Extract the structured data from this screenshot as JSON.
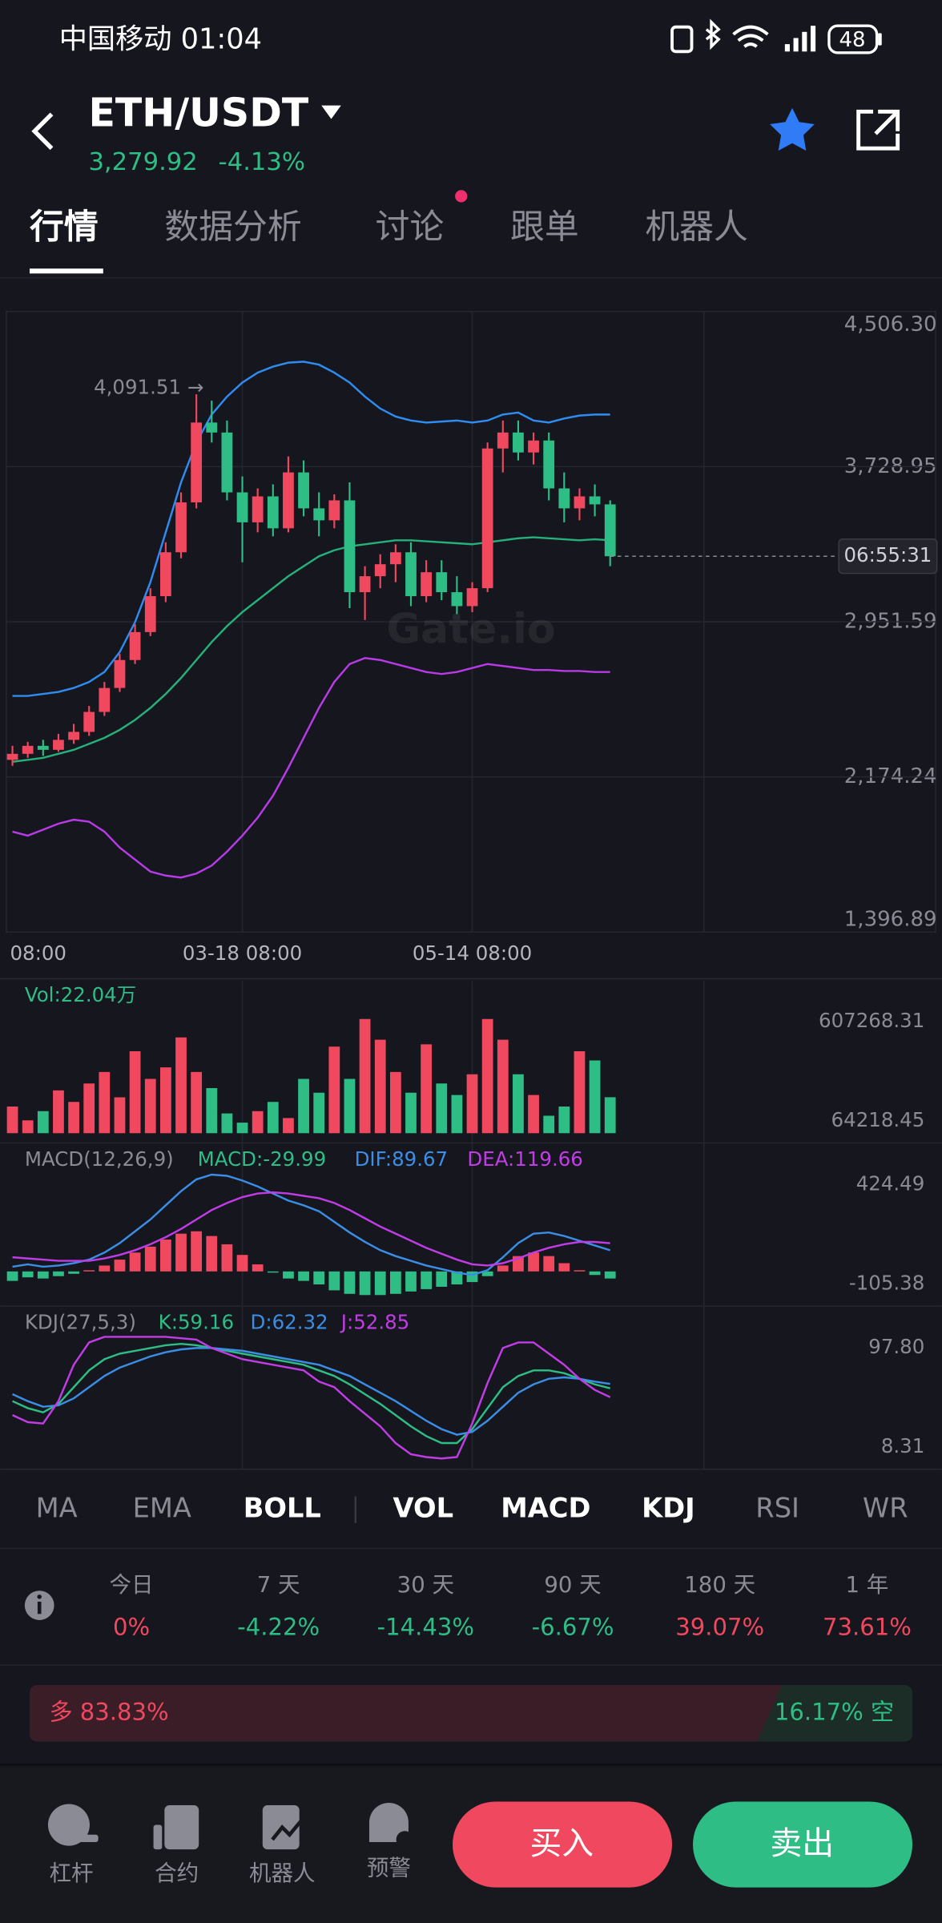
{
  "status_bar": {
    "carrier_time": "中国移动 01:04",
    "battery": "48"
  },
  "header": {
    "pair": "ETH/USDT",
    "price": "3,279.92",
    "change": "-4.13%"
  },
  "tabs": [
    "行情",
    "数据分析",
    "讨论",
    "跟单",
    "机器人"
  ],
  "chart_data": [
    {
      "type": "candlestick",
      "categories": [
        "08:00",
        null,
        null,
        null,
        null,
        null,
        null,
        null,
        null,
        null,
        null,
        null,
        null,
        null,
        null,
        "03-18 08:00",
        null,
        null,
        null,
        null,
        null,
        null,
        null,
        null,
        null,
        null,
        null,
        null,
        null,
        null,
        "05-14 08:00",
        null,
        null,
        null,
        null,
        null,
        null,
        null,
        null,
        null
      ],
      "open": [
        2260,
        2290,
        2330,
        2310,
        2360,
        2400,
        2500,
        2620,
        2760,
        2900,
        3080,
        3300,
        3550,
        3950,
        3900,
        3600,
        3450,
        3580,
        3420,
        3700,
        3520,
        3460,
        3560,
        3100,
        3180,
        3240,
        3300,
        3080,
        3200,
        3100,
        3030,
        3120,
        3820,
        3900,
        3800,
        3860,
        3620,
        3520,
        3580,
        3540
      ],
      "high": [
        2330,
        2350,
        2360,
        2390,
        2440,
        2530,
        2650,
        2790,
        2940,
        3120,
        3350,
        3600,
        4091.51,
        4060,
        3960,
        3680,
        3620,
        3640,
        3780,
        3760,
        3600,
        3590,
        3650,
        3230,
        3290,
        3340,
        3350,
        3260,
        3260,
        3180,
        3150,
        3850,
        3960,
        3960,
        3900,
        3900,
        3700,
        3620,
        3640,
        3560
      ],
      "low": [
        2230,
        2270,
        2280,
        2300,
        2340,
        2380,
        2480,
        2600,
        2740,
        2880,
        3050,
        3270,
        3520,
        3850,
        3560,
        3250,
        3400,
        3380,
        3400,
        3480,
        3380,
        3420,
        3020,
        2960,
        3120,
        3150,
        3030,
        3050,
        3060,
        2990,
        3000,
        3100,
        3700,
        3760,
        3740,
        3560,
        3450,
        3460,
        3480,
        3230
      ],
      "close": [
        2290,
        2330,
        2310,
        2360,
        2400,
        2500,
        2620,
        2760,
        2900,
        3080,
        3300,
        3550,
        3950,
        3900,
        3600,
        3450,
        3580,
        3420,
        3700,
        3520,
        3460,
        3560,
        3100,
        3180,
        3240,
        3300,
        3080,
        3200,
        3100,
        3030,
        3120,
        3820,
        3900,
        3800,
        3860,
        3620,
        3520,
        3580,
        3540,
        3279.92
      ],
      "up_color": "#f0485e",
      "down_color": "#2ebd85",
      "series": [
        {
          "color": "#2f8cf0",
          "values": [
            2580,
            2580,
            2590,
            2600,
            2620,
            2650,
            2700,
            2800,
            2950,
            3150,
            3400,
            3650,
            3850,
            3990,
            4080,
            4150,
            4200,
            4230,
            4250,
            4255,
            4240,
            4200,
            4150,
            4080,
            4020,
            3980,
            3960,
            3950,
            3955,
            3960,
            3950,
            3960,
            3990,
            4000,
            3960,
            3950,
            3970,
            3985,
            3990,
            3990
          ]
        },
        {
          "color": "#26b07a",
          "values": [
            2250,
            2260,
            2270,
            2290,
            2310,
            2340,
            2370,
            2410,
            2460,
            2520,
            2590,
            2670,
            2760,
            2850,
            2930,
            3000,
            3060,
            3120,
            3180,
            3230,
            3280,
            3310,
            3330,
            3340,
            3350,
            3360,
            3360,
            3355,
            3350,
            3345,
            3340,
            3350,
            3360,
            3370,
            3375,
            3370,
            3365,
            3360,
            3365,
            3360
          ]
        },
        {
          "color": "#b73be6",
          "values": [
            1900,
            1880,
            1910,
            1940,
            1960,
            1950,
            1900,
            1820,
            1760,
            1700,
            1680,
            1670,
            1690,
            1730,
            1800,
            1880,
            1970,
            2080,
            2220,
            2370,
            2520,
            2650,
            2740,
            2770,
            2760,
            2740,
            2720,
            2700,
            2690,
            2700,
            2720,
            2740,
            2730,
            2720,
            2710,
            2710,
            2705,
            2705,
            2700,
            2700
          ]
        }
      ],
      "ylim": [
        1396.89,
        4506.3
      ],
      "yticks": [
        {
          "value": 1396.89,
          "label": "1,396.89"
        },
        {
          "value": 2174.24,
          "label": "2,174.24"
        },
        {
          "value": 2951.59,
          "label": "2,951.59"
        },
        {
          "value": 3728.95,
          "label": "3,728.95"
        },
        {
          "value": 4506.3,
          "label": "4,506.30"
        }
      ],
      "grid": true,
      "annotation": "4,091.51 →",
      "countdown": "06:55:31",
      "watermark": "Gate.io"
    },
    {
      "type": "bar",
      "name": "Vol:22.04万",
      "values": [
        180000,
        120000,
        160000,
        250000,
        200000,
        280000,
        330000,
        220000,
        420000,
        300000,
        350000,
        480000,
        330000,
        260000,
        150000,
        110000,
        160000,
        200000,
        130000,
        300000,
        240000,
        440000,
        300000,
        560000,
        470000,
        330000,
        240000,
        450000,
        280000,
        230000,
        320000,
        560000,
        470000,
        320000,
        230000,
        140000,
        180000,
        420000,
        380000,
        220400
      ],
      "ylim": [
        64218.45,
        607268.31
      ],
      "yticks": [
        64218.45,
        607268.31
      ]
    },
    {
      "type": "macd",
      "title": "MACD(12,26,9)",
      "histogram": {
        "name": "MACD:-29.99",
        "color": "#2ebd85",
        "values": [
          -40,
          -25,
          -30,
          -20,
          -10,
          5,
          25,
          50,
          80,
          105,
          135,
          160,
          170,
          150,
          115,
          70,
          30,
          -5,
          -30,
          -40,
          -55,
          -80,
          -95,
          -100,
          -100,
          -95,
          -85,
          -75,
          -65,
          -55,
          -45,
          -20,
          25,
          65,
          80,
          65,
          35,
          5,
          -15,
          -29.99
        ]
      },
      "series": [
        {
          "name": "DIF:89.67",
          "color": "#3a8ee6",
          "values": [
            20,
            30,
            20,
            25,
            35,
            50,
            80,
            120,
            170,
            220,
            280,
            340,
            390,
            410,
            405,
            385,
            360,
            330,
            300,
            280,
            255,
            210,
            165,
            125,
            90,
            65,
            45,
            25,
            10,
            -5,
            -15,
            5,
            60,
            120,
            160,
            165,
            150,
            130,
            110,
            89.67
          ]
        },
        {
          "name": "DEA:119.66",
          "color": "#c03de6",
          "values": [
            60,
            55,
            50,
            45,
            45,
            45,
            55,
            70,
            90,
            115,
            145,
            180,
            220,
            260,
            290,
            315,
            330,
            335,
            330,
            320,
            310,
            290,
            260,
            225,
            190,
            160,
            130,
            100,
            75,
            50,
            30,
            25,
            35,
            55,
            80,
            100,
            115,
            125,
            125,
            119.66
          ]
        }
      ],
      "ylim": [
        -105.38,
        424.49
      ],
      "yticks": [
        -105.38,
        424.49
      ]
    },
    {
      "type": "line",
      "title": "KDJ(27,5,3)",
      "series": [
        {
          "name": "K:59.16",
          "color": "#2ebd85",
          "values": [
            50,
            45,
            42,
            48,
            60,
            72,
            80,
            84,
            86,
            88,
            90,
            91,
            90,
            88,
            86,
            84,
            82,
            80,
            78,
            76,
            72,
            68,
            62,
            55,
            48,
            40,
            32,
            25,
            20,
            20,
            30,
            45,
            60,
            68,
            72,
            72,
            70,
            66,
            62,
            59.16
          ]
        },
        {
          "name": "D:62.32",
          "color": "#3a8ee6",
          "values": [
            55,
            50,
            46,
            47,
            52,
            60,
            68,
            74,
            78,
            82,
            85,
            87,
            88,
            88,
            87,
            86,
            84,
            82,
            80,
            78,
            76,
            72,
            68,
            62,
            56,
            50,
            43,
            36,
            30,
            26,
            28,
            36,
            46,
            56,
            62,
            66,
            67,
            66,
            64,
            62.32
          ]
        },
        {
          "name": "J:52.85",
          "color": "#c03de6",
          "values": [
            40,
            35,
            34,
            50,
            76,
            92,
            96,
            96,
            96,
            96,
            96,
            95,
            94,
            88,
            84,
            80,
            78,
            76,
            74,
            72,
            64,
            60,
            50,
            41,
            32,
            20,
            12,
            10,
            9,
            10,
            34,
            63,
            88,
            92,
            92,
            84,
            76,
            66,
            58,
            52.85
          ]
        }
      ],
      "ylim": [
        8.31,
        97.8
      ],
      "yticks": [
        8.31,
        {
          "value": 97.8,
          "label": "97.80"
        }
      ]
    }
  ],
  "indicators": [
    {
      "label": "MA",
      "active": false
    },
    {
      "label": "EMA",
      "active": false
    },
    {
      "label": "BOLL",
      "active": true
    },
    {
      "label": "VOL",
      "active": true
    },
    {
      "label": "MACD",
      "active": true
    },
    {
      "label": "KDJ",
      "active": true
    },
    {
      "label": "RSI",
      "active": false
    },
    {
      "label": "WR",
      "active": false
    }
  ],
  "stats": [
    {
      "label": "今日",
      "value": "0%"
    },
    {
      "label": "7 天",
      "value": "-4.22%"
    },
    {
      "label": "30 天",
      "value": "-14.43%"
    },
    {
      "label": "90 天",
      "value": "-6.67%"
    },
    {
      "label": "180 天",
      "value": "39.07%"
    },
    {
      "label": "1 年",
      "value": "73.61%"
    }
  ],
  "long_short": {
    "long": {
      "value": 83.83,
      "label": "多 83.83%"
    },
    "short": {
      "value": 16.17,
      "label": "16.17% 空"
    }
  },
  "nav": [
    "杠杆",
    "合约",
    "机器人",
    "预警"
  ],
  "buttons": {
    "buy": "买入",
    "sell": "卖出"
  }
}
